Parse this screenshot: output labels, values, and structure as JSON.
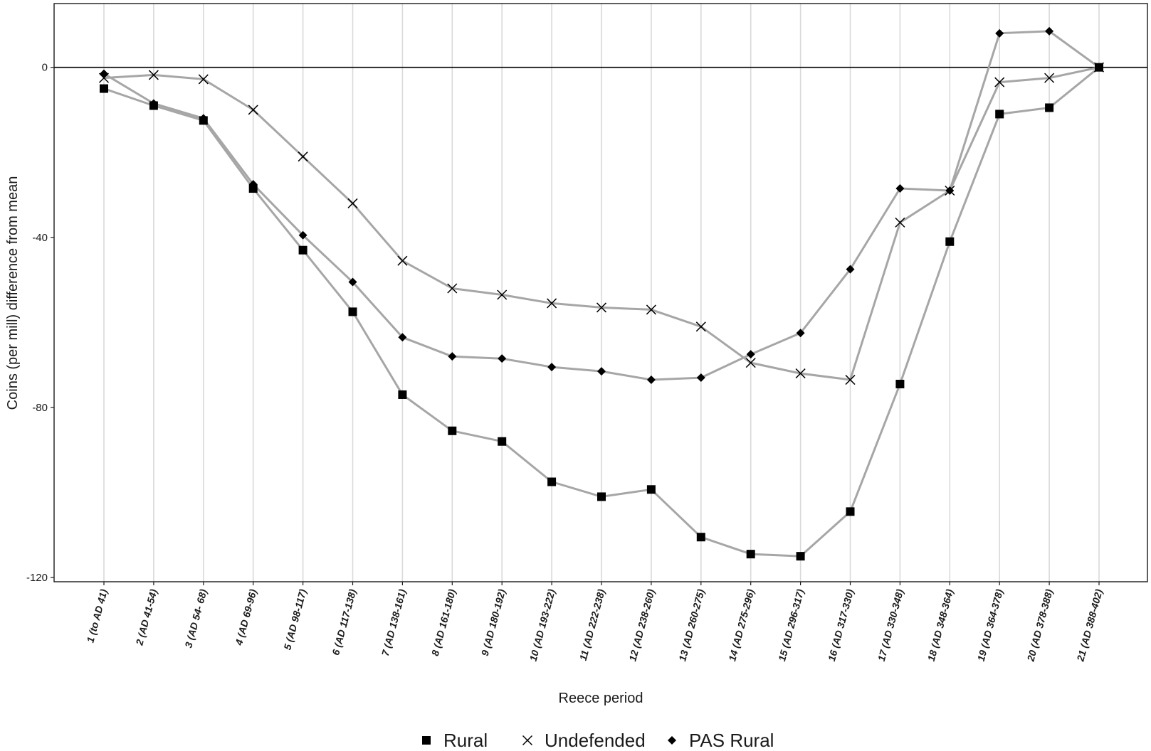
{
  "chart_data": {
    "type": "line",
    "title": "",
    "xlabel": "Reece period",
    "ylabel": "Coins (per mill) difference from mean",
    "ylim": [
      -121,
      15
    ],
    "yticks": [
      0,
      -40,
      -80,
      -120
    ],
    "grid": "vertical",
    "zero_line": true,
    "legend_position": "bottom",
    "categories": [
      "1 (to AD 41)",
      "2 (AD 41-54)",
      "3 (AD 54- 68)",
      "4 (AD 69-96)",
      "5 (AD 98-117)",
      "6 (AD 117-138)",
      "7 (AD 138-161)",
      "8 (AD 161-180)",
      "9 (AD 180-192)",
      "10 (AD 193-222)",
      "11 (AD 222-238)",
      "12 (AD 238-260)",
      "13 (AD 260-275)",
      "14 (AD 275-296)",
      "15 (AD 296-317)",
      "16 (AD 317-330)",
      "17 (AD 330-348)",
      "18 (AD 348-364)",
      "19 (AD 364-378)",
      "20 (AD 378-388)",
      "21 (AD 388-402)"
    ],
    "series": [
      {
        "name": "Rural",
        "marker": "square",
        "values": [
          -5,
          -9,
          -12.5,
          -28.5,
          -43,
          -57.5,
          -77,
          -85.5,
          -88,
          -97.5,
          -101,
          -99.3,
          -110.5,
          -114.5,
          -115,
          -104.5,
          -74.5,
          -41,
          -11,
          -9.5,
          0
        ]
      },
      {
        "name": "Undefended",
        "marker": "cross",
        "values": [
          -2.5,
          -1.8,
          -2.8,
          -10,
          -21,
          -32,
          -45.5,
          -52,
          -53.5,
          -55.5,
          -56.5,
          -57,
          -61,
          -69.5,
          -72,
          -73.5,
          -36.5,
          -29,
          -3.5,
          -2.5,
          0
        ]
      },
      {
        "name": "PAS Rural",
        "marker": "diamond",
        "values": [
          -1.5,
          -8.5,
          -12,
          -27.5,
          -39.5,
          -50.5,
          -63.5,
          -68,
          -68.5,
          -70.5,
          -71.5,
          -73.5,
          -73,
          -67.5,
          -62.5,
          -47.5,
          -28.5,
          -29,
          8,
          8.5,
          0
        ]
      }
    ],
    "colors": {
      "line": "#a6a6a6",
      "marker": "#000000",
      "grid": "#d9d9d9",
      "zero": "#000000"
    }
  }
}
